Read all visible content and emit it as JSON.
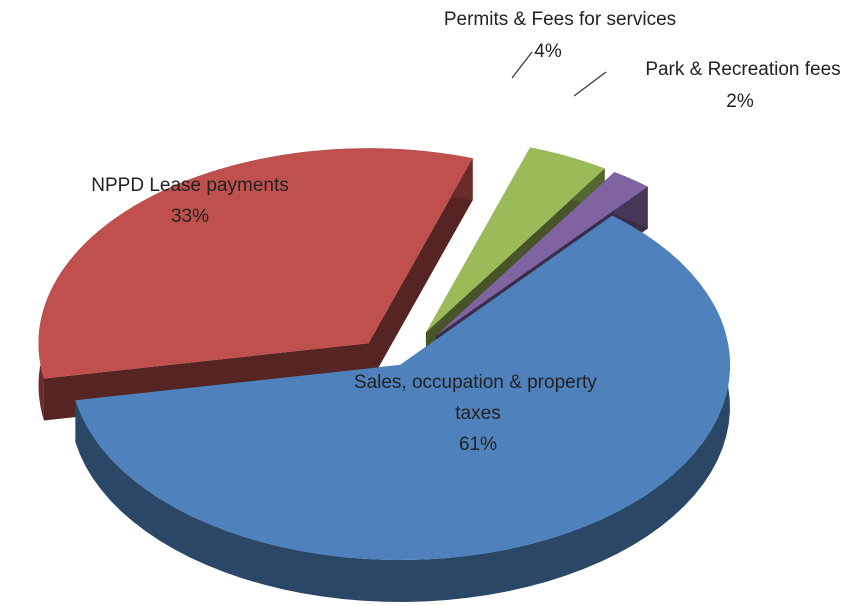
{
  "chart_data": {
    "type": "pie",
    "categories": [
      "Sales, occupation & property taxes",
      "NPPD Lease payments",
      "Permits & Fees for services",
      "Park & Recreation fees"
    ],
    "values": [
      61,
      33,
      4,
      2
    ],
    "value_labels": [
      "61%",
      "33%",
      "4%",
      "2%"
    ],
    "colors": [
      "#4f81bd",
      "#c0504d",
      "#9bbb59",
      "#8064a2"
    ]
  }
}
